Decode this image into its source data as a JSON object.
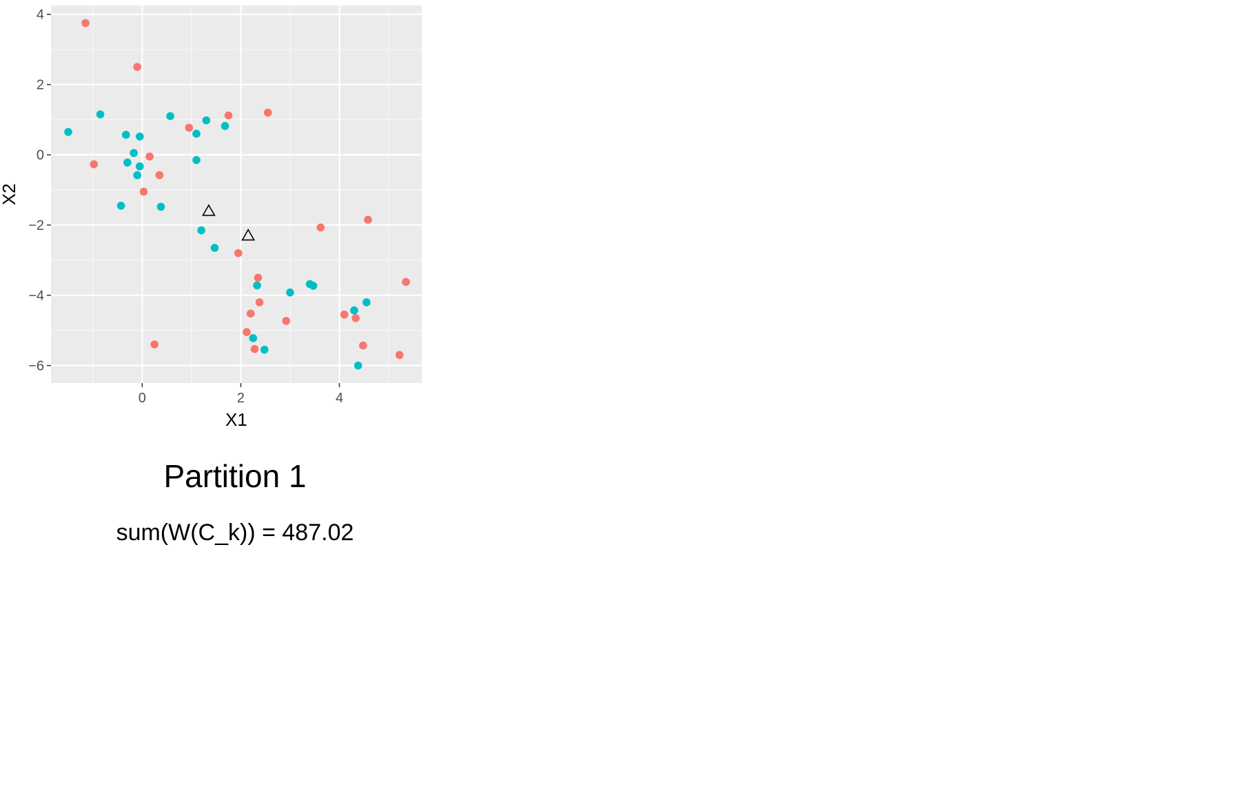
{
  "chart_data": {
    "type": "scatter",
    "title": "",
    "xlabel": "X1",
    "ylabel": "X2",
    "xlim": [
      -1.85,
      5.67
    ],
    "ylim": [
      -6.5,
      4.25
    ],
    "xticks": [
      0,
      2,
      4
    ],
    "yticks": [
      4,
      2,
      0,
      -2,
      -4,
      -6
    ],
    "grid": true,
    "legend": "none",
    "series": [
      {
        "color": "#F8766D",
        "marker": "circle",
        "points": [
          [
            -1.15,
            3.75
          ],
          [
            -0.1,
            2.5
          ],
          [
            0.95,
            0.77
          ],
          [
            1.75,
            1.12
          ],
          [
            2.55,
            1.2
          ],
          [
            -0.98,
            -0.27
          ],
          [
            0.15,
            -0.05
          ],
          [
            0.35,
            -0.58
          ],
          [
            0.03,
            -1.05
          ],
          [
            3.62,
            -2.07
          ],
          [
            4.58,
            -1.85
          ],
          [
            5.35,
            -3.62
          ],
          [
            1.95,
            -2.8
          ],
          [
            2.35,
            -3.5
          ],
          [
            2.38,
            -4.2
          ],
          [
            2.2,
            -4.52
          ],
          [
            2.12,
            -5.05
          ],
          [
            2.28,
            -5.53
          ],
          [
            2.92,
            -4.73
          ],
          [
            4.1,
            -4.55
          ],
          [
            4.33,
            -4.65
          ],
          [
            4.48,
            -5.43
          ],
          [
            5.22,
            -5.7
          ],
          [
            0.25,
            -5.4
          ]
        ]
      },
      {
        "color": "#00BFC4",
        "marker": "circle",
        "points": [
          [
            -1.5,
            0.65
          ],
          [
            -0.85,
            1.15
          ],
          [
            -0.33,
            0.57
          ],
          [
            -0.05,
            0.52
          ],
          [
            -0.17,
            0.05
          ],
          [
            -0.3,
            -0.22
          ],
          [
            -0.05,
            -0.33
          ],
          [
            -0.1,
            -0.58
          ],
          [
            0.57,
            1.1
          ],
          [
            1.3,
            0.98
          ],
          [
            1.68,
            0.82
          ],
          [
            1.1,
            0.6
          ],
          [
            1.1,
            -0.15
          ],
          [
            -0.43,
            -1.45
          ],
          [
            0.38,
            -1.48
          ],
          [
            1.2,
            -2.15
          ],
          [
            1.47,
            -2.65
          ],
          [
            2.33,
            -3.72
          ],
          [
            3.0,
            -3.92
          ],
          [
            3.4,
            -3.68
          ],
          [
            3.47,
            -3.73
          ],
          [
            4.3,
            -4.43
          ],
          [
            4.55,
            -4.2
          ],
          [
            2.25,
            -5.22
          ],
          [
            2.48,
            -5.55
          ],
          [
            4.38,
            -6.0
          ]
        ]
      },
      {
        "color": "#000000",
        "marker": "triangle-open",
        "points": [
          [
            1.35,
            -1.6
          ],
          [
            2.15,
            -2.3
          ]
        ]
      }
    ]
  },
  "caption": {
    "title": "Partition 1",
    "subtitle": "sum(W(C_k)) = 487.02"
  }
}
